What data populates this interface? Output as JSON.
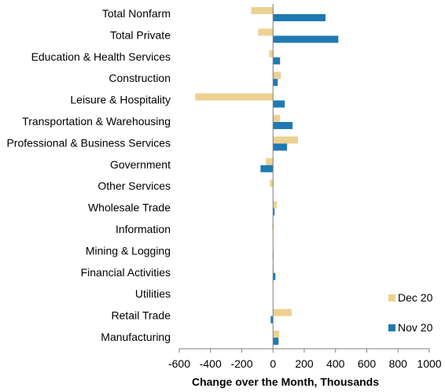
{
  "chart_data": {
    "type": "bar",
    "orientation": "horizontal",
    "categories": [
      "Total Nonfarm",
      "Total Private",
      "Education & Health Services",
      "Construction",
      "Leisure & Hospitality",
      "Transportation & Warehousing",
      "Professional & Business Services",
      "Government",
      "Other Services",
      "Wholesale Trade",
      "Information",
      "Mining & Logging",
      "Financial Activities",
      "Utilities",
      "Retail Trade",
      "Manufacturing"
    ],
    "series": [
      {
        "name": "Dec 20",
        "color": "#ecd192",
        "values": [
          -140,
          -95,
          -25,
          50,
          -498,
          45,
          160,
          -45,
          -20,
          25,
          -5,
          0,
          5,
          0,
          120,
          40
        ]
      },
      {
        "name": "Nov 20",
        "color": "#1f7ab2",
        "values": [
          336,
          418,
          45,
          30,
          75,
          125,
          90,
          -80,
          0,
          10,
          0,
          3,
          15,
          0,
          -15,
          35
        ]
      }
    ],
    "xlabel": "Change over the Month, Thousands",
    "xlim": [
      -600,
      1000
    ],
    "xticks": [
      -600,
      -400,
      -200,
      0,
      200,
      400,
      600,
      800,
      1000
    ],
    "grid": false,
    "legend_position": "bottom-right"
  }
}
